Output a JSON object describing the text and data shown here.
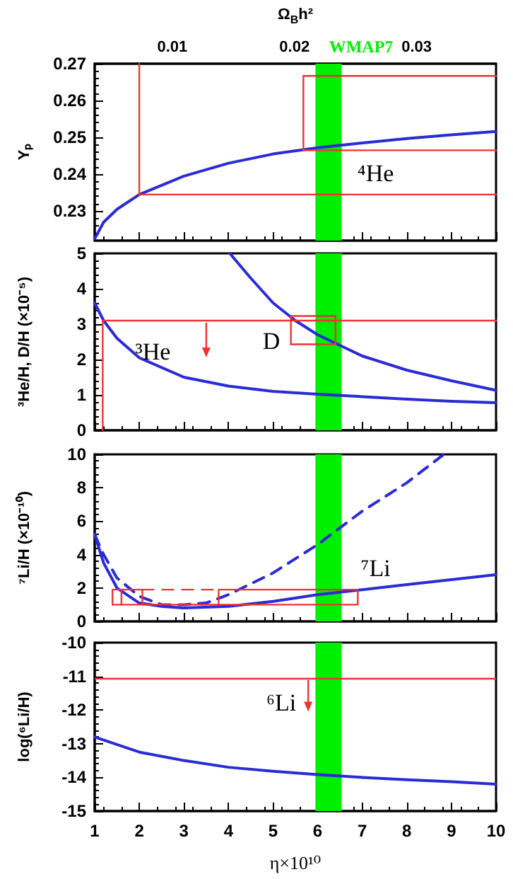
{
  "chart_data": [
    {
      "type": "line",
      "ylabel": "Yₚ",
      "x2label": "Ω$_{B}$h²",
      "xlim": [
        1,
        10
      ],
      "xticks": [
        1,
        2,
        3,
        4,
        5,
        6,
        7,
        8,
        9,
        10
      ],
      "ylim": [
        0.222,
        0.27
      ],
      "yticks": [
        0.23,
        0.24,
        0.25,
        0.26,
        0.27
      ],
      "x2lim": [
        0.00365,
        0.0365
      ],
      "x2ticks": [
        0.01,
        0.02,
        0.03
      ],
      "tick_labels": "y",
      "grid": false,
      "marker": "none",
      "line_style": "solid",
      "bands": [
        {
          "axis": "x",
          "from": 5.95,
          "to": 6.54,
          "label": "WMAP7",
          "color": "#00ee00"
        }
      ],
      "annotations": [
        "⁴He"
      ],
      "series": [
        {
          "color": "#2b2bd6",
          "x": [
            1,
            1.2,
            1.5,
            2,
            3,
            4,
            5,
            6,
            7,
            8,
            9,
            10
          ],
          "values": [
            0.2225,
            0.227,
            0.2305,
            0.2345,
            0.2395,
            0.243,
            0.2455,
            0.2472,
            0.2485,
            0.2497,
            0.2507,
            0.2516
          ]
        },
        {
          "color": "#ee3333",
          "x": [
            2,
            2,
            10
          ],
          "values": [
            0.27,
            0.2345,
            0.2345
          ]
        },
        {
          "color": "#ee3333",
          "x": [
            10,
            5.68,
            5.68,
            10
          ],
          "values": [
            0.2667,
            0.2667,
            0.2465,
            0.2465
          ]
        }
      ]
    },
    {
      "type": "line",
      "ylabel": "³He/H, D/H (×10⁻⁵)",
      "xlim": [
        1,
        10
      ],
      "xticks": [
        1,
        2,
        3,
        4,
        5,
        6,
        7,
        8,
        9,
        10
      ],
      "ylim": [
        0,
        5
      ],
      "yticks": [
        0,
        1,
        2,
        3,
        4,
        5
      ],
      "tick_labels": "y",
      "grid": false,
      "marker": "none",
      "line_style": "solid",
      "bands": [
        {
          "axis": "x",
          "from": 5.95,
          "to": 6.54,
          "color": "#00ee00"
        }
      ],
      "annotations": [
        "³He",
        "D"
      ],
      "series": [
        {
          "color": "#2b2bd6",
          "x": [
            4.03,
            4.5,
            5,
            5.5,
            6,
            6.5,
            7,
            8,
            9,
            10
          ],
          "values": [
            5,
            4.3,
            3.6,
            3.1,
            2.7,
            2.4,
            2.1,
            1.7,
            1.4,
            1.13
          ]
        },
        {
          "color": "#2b2bd6",
          "x": [
            1,
            1.2,
            1.5,
            2,
            3,
            4,
            5,
            6,
            7,
            8,
            9,
            10
          ],
          "values": [
            3.6,
            3.1,
            2.6,
            2.05,
            1.5,
            1.25,
            1.1,
            1.02,
            0.95,
            0.88,
            0.82,
            0.78
          ]
        },
        {
          "color": "#ee3333",
          "x": [
            1.18,
            1.18,
            10
          ],
          "values": [
            0,
            3.1,
            3.1
          ]
        },
        {
          "color": "#ee3333",
          "x": [
            5.4,
            6.4,
            6.4
          ],
          "values": [
            2.43,
            2.43,
            3.23
          ]
        },
        {
          "color": "#ee3333",
          "x": [
            6.4,
            5.4,
            5.4
          ],
          "values": [
            3.23,
            3.23,
            2.43
          ]
        }
      ]
    },
    {
      "type": "line",
      "ylabel": "⁷Li/H (×10⁻¹⁰)",
      "xlim": [
        1,
        10
      ],
      "xticks": [
        1,
        2,
        3,
        4,
        5,
        6,
        7,
        8,
        9,
        10
      ],
      "ylim": [
        0,
        10
      ],
      "yticks": [
        0,
        2,
        4,
        6,
        8,
        10
      ],
      "tick_labels": "y",
      "grid": false,
      "marker": "none",
      "line_style": "solid",
      "bands": [
        {
          "axis": "x",
          "from": 5.95,
          "to": 6.54,
          "color": "#00ee00"
        }
      ],
      "annotations": [
        "⁷Li"
      ],
      "series": [
        {
          "color": "#2b2bd6",
          "x": [
            1,
            1.2,
            1.5,
            2,
            2.5,
            3,
            4,
            5,
            6,
            7,
            8,
            9,
            10
          ],
          "values": [
            5.2,
            3.5,
            2.0,
            1.1,
            0.9,
            0.8,
            0.9,
            1.2,
            1.6,
            1.9,
            2.2,
            2.5,
            2.8
          ]
        },
        {
          "color": "#2b2bd6",
          "line_style": "dashed",
          "x": [
            1,
            1.2,
            1.5,
            2,
            2.5,
            3,
            3.5,
            4,
            5,
            6,
            6.5,
            7,
            8,
            8.83
          ],
          "values": [
            5.2,
            4.0,
            2.6,
            1.5,
            1.0,
            1.0,
            1.1,
            1.6,
            2.9,
            4.6,
            5.6,
            6.6,
            8.3,
            10
          ]
        },
        {
          "color": "#ee3333",
          "x": [
            1.4,
            2.07,
            2.07
          ],
          "values": [
            1.0,
            1.0,
            1.9
          ]
        },
        {
          "color": "#ee3333",
          "x": [
            2.07,
            1.4,
            1.4
          ],
          "values": [
            1.9,
            1.9,
            1.0
          ]
        },
        {
          "color": "#ee3333",
          "x": [
            1.6,
            1.6
          ],
          "values": [
            1.0,
            1.9
          ]
        },
        {
          "color": "#ee3333",
          "x": [
            2.07,
            6.9,
            6.9
          ],
          "values": [
            1.0,
            1.0,
            1.9
          ]
        },
        {
          "color": "#ee3333",
          "x": [
            3.78,
            3.78,
            6.9
          ],
          "values": [
            1.0,
            1.9,
            1.9
          ]
        },
        {
          "color": "#ee3333",
          "line_style": "dashed",
          "x": [
            2.07,
            3.7
          ],
          "values": [
            1.9,
            1.9
          ]
        }
      ]
    },
    {
      "type": "line",
      "ylabel": "log(⁶Li/H)",
      "xlabel": "η×10¹⁰",
      "xlim": [
        1,
        10
      ],
      "xticks": [
        1,
        2,
        3,
        4,
        5,
        6,
        7,
        8,
        9,
        10
      ],
      "ylim": [
        -15,
        -10
      ],
      "yticks": [
        -15,
        -14,
        -13,
        -12,
        -11,
        -10
      ],
      "grid": false,
      "marker": "none",
      "line_style": "solid",
      "bands": [
        {
          "axis": "x",
          "from": 5.95,
          "to": 6.54,
          "color": "#00ee00"
        }
      ],
      "ref_lines": [
        {
          "axis": "y",
          "value": -11.08,
          "color": "#ee3333"
        }
      ],
      "annotations": [
        "⁶Li"
      ],
      "series": [
        {
          "color": "#2b2bd6",
          "x": [
            1,
            2,
            3,
            4,
            5,
            6,
            7,
            8,
            9,
            10
          ],
          "values": [
            -12.8,
            -13.25,
            -13.5,
            -13.7,
            -13.82,
            -13.92,
            -14.0,
            -14.07,
            -14.13,
            -14.2
          ]
        }
      ]
    }
  ]
}
